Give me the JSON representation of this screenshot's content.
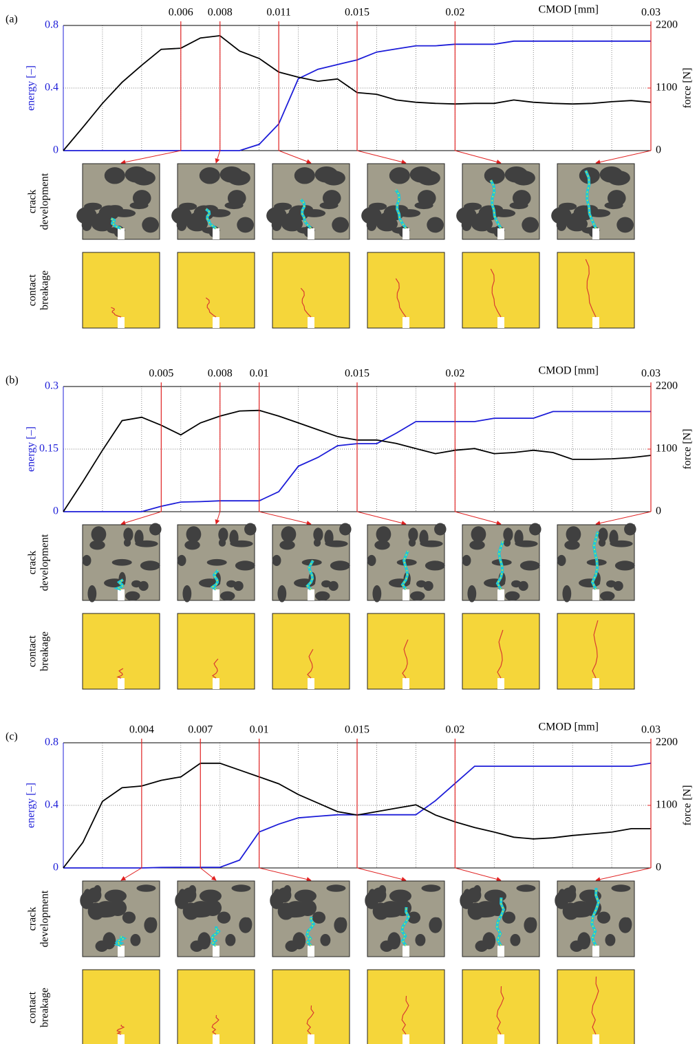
{
  "chart_data": [
    {
      "type": "line",
      "panel": "(a)",
      "xlabel": "CMOD [mm]",
      "ylabel": "energy [–]",
      "y2label": "force [N]",
      "row_labels": [
        [
          "crack",
          "development"
        ],
        [
          "contact",
          "breakage"
        ]
      ],
      "xlim": [
        0,
        0.03
      ],
      "xticks": [
        0.006,
        0.008,
        0.011,
        0.015,
        0.02,
        0.03
      ],
      "xgrid": [
        0.002,
        0.004,
        0.006,
        0.008,
        0.01,
        0.012,
        0.014,
        0.016,
        0.018,
        0.02,
        0.022,
        0.024,
        0.026,
        0.028
      ],
      "ylim": [
        0,
        0.8
      ],
      "yticks": [
        0,
        0.4,
        0.8
      ],
      "y2lim": [
        0,
        2200
      ],
      "y2ticks": [
        0,
        1100,
        2200
      ],
      "grid": true,
      "x": [
        0,
        0.001,
        0.002,
        0.003,
        0.004,
        0.005,
        0.006,
        0.007,
        0.008,
        0.009,
        0.01,
        0.011,
        0.012,
        0.013,
        0.014,
        0.015,
        0.016,
        0.017,
        0.018,
        0.019,
        0.02,
        0.021,
        0.022,
        0.023,
        0.024,
        0.025,
        0.026,
        0.027,
        0.028,
        0.029,
        0.03
      ],
      "series": [
        {
          "name": "energy",
          "color": "#1c1cd8",
          "values": [
            0,
            0,
            0,
            0,
            0,
            0,
            0,
            0,
            0,
            0,
            0.04,
            0.17,
            0.46,
            0.52,
            0.55,
            0.58,
            0.63,
            0.65,
            0.67,
            0.67,
            0.68,
            0.68,
            0.68,
            0.7,
            0.7,
            0.7,
            0.7,
            0.7,
            0.7,
            0.7,
            0.7
          ]
        },
        {
          "name": "force",
          "color": "#000000",
          "axis": "y2",
          "values": [
            0,
            410,
            830,
            1200,
            1500,
            1780,
            1800,
            1980,
            2020,
            1750,
            1620,
            1380,
            1290,
            1220,
            1260,
            1020,
            990,
            890,
            850,
            830,
            820,
            830,
            830,
            890,
            850,
            830,
            820,
            830,
            860,
            880,
            850
          ]
        }
      ]
    },
    {
      "type": "line",
      "panel": "(b)",
      "xlabel": "CMOD [mm]",
      "ylabel": "energy [–]",
      "y2label": "force [N]",
      "row_labels": [
        [
          "crack",
          "development"
        ],
        [
          "contact",
          "breakage"
        ]
      ],
      "xlim": [
        0,
        0.03
      ],
      "xticks": [
        0.005,
        0.008,
        0.01,
        0.015,
        0.02,
        0.03
      ],
      "xgrid": [
        0.002,
        0.004,
        0.006,
        0.008,
        0.01,
        0.012,
        0.014,
        0.016,
        0.018,
        0.02,
        0.022,
        0.024,
        0.026,
        0.028
      ],
      "ylim": [
        0,
        0.3
      ],
      "yticks": [
        0,
        0.15,
        0.3
      ],
      "y2lim": [
        0,
        2200
      ],
      "y2ticks": [
        0,
        1100,
        2200
      ],
      "grid": true,
      "x": [
        0,
        0.001,
        0.002,
        0.003,
        0.004,
        0.005,
        0.006,
        0.007,
        0.008,
        0.009,
        0.01,
        0.011,
        0.012,
        0.013,
        0.014,
        0.015,
        0.016,
        0.017,
        0.018,
        0.019,
        0.02,
        0.021,
        0.022,
        0.023,
        0.024,
        0.025,
        0.026,
        0.027,
        0.028,
        0.029,
        0.03
      ],
      "series": [
        {
          "name": "energy",
          "color": "#1c1cd8",
          "values": [
            0,
            0,
            0,
            0,
            0,
            0.013,
            0.023,
            0.024,
            0.026,
            0.026,
            0.026,
            0.048,
            0.109,
            0.13,
            0.158,
            0.163,
            0.163,
            0.188,
            0.216,
            0.216,
            0.216,
            0.216,
            0.224,
            0.224,
            0.224,
            0.24,
            0.24,
            0.24,
            0.24,
            0.24,
            0.24
          ]
        },
        {
          "name": "force",
          "color": "#000000",
          "axis": "y2",
          "values": [
            0,
            530,
            1080,
            1600,
            1660,
            1520,
            1350,
            1560,
            1680,
            1770,
            1780,
            1680,
            1560,
            1440,
            1320,
            1260,
            1260,
            1200,
            1110,
            1020,
            1080,
            1110,
            1020,
            1040,
            1080,
            1040,
            920,
            920,
            930,
            950,
            990
          ]
        }
      ]
    },
    {
      "type": "line",
      "panel": "(c)",
      "xlabel": "CMOD [mm]",
      "ylabel": "energy [–]",
      "y2label": "force [N]",
      "row_labels": [
        [
          "crack",
          "development"
        ],
        [
          "contact",
          "breakage"
        ]
      ],
      "xlim": [
        0,
        0.03
      ],
      "xticks": [
        0.004,
        0.007,
        0.01,
        0.015,
        0.02,
        0.03
      ],
      "xgrid": [
        0.002,
        0.004,
        0.006,
        0.008,
        0.01,
        0.012,
        0.014,
        0.016,
        0.018,
        0.02,
        0.022,
        0.024,
        0.026,
        0.028
      ],
      "ylim": [
        0,
        0.8
      ],
      "yticks": [
        0,
        0.4,
        0.8
      ],
      "y2lim": [
        0,
        2200
      ],
      "y2ticks": [
        0,
        1100,
        2200
      ],
      "grid": true,
      "x": [
        0,
        0.001,
        0.002,
        0.003,
        0.004,
        0.005,
        0.006,
        0.007,
        0.008,
        0.009,
        0.01,
        0.011,
        0.012,
        0.013,
        0.014,
        0.015,
        0.016,
        0.017,
        0.018,
        0.019,
        0.02,
        0.021,
        0.022,
        0.023,
        0.024,
        0.025,
        0.026,
        0.027,
        0.028,
        0.029,
        0.03
      ],
      "series": [
        {
          "name": "energy",
          "color": "#1c1cd8",
          "values": [
            0,
            0,
            0,
            0,
            0,
            0.003,
            0.004,
            0.004,
            0.004,
            0.05,
            0.23,
            0.28,
            0.32,
            0.33,
            0.34,
            0.34,
            0.34,
            0.34,
            0.34,
            0.43,
            0.54,
            0.65,
            0.65,
            0.65,
            0.65,
            0.65,
            0.65,
            0.65,
            0.65,
            0.65,
            0.67
          ]
        },
        {
          "name": "force",
          "color": "#000000",
          "axis": "y2",
          "values": [
            0,
            450,
            1170,
            1410,
            1440,
            1540,
            1600,
            1840,
            1840,
            1720,
            1600,
            1480,
            1290,
            1140,
            990,
            930,
            990,
            1050,
            1110,
            930,
            810,
            710,
            630,
            540,
            510,
            530,
            570,
            600,
            630,
            690,
            690
          ]
        }
      ]
    }
  ]
}
